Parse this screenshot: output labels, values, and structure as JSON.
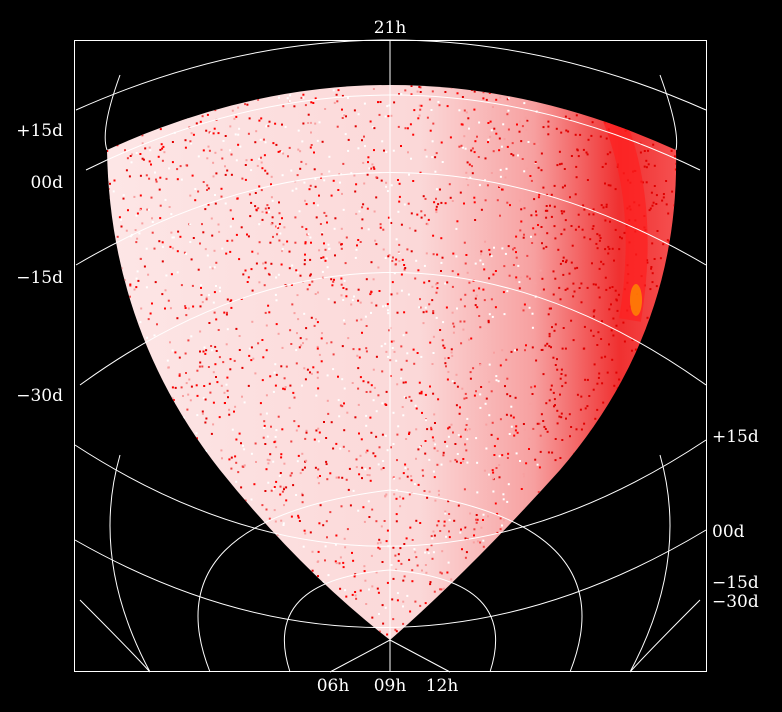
{
  "chart_data": {
    "type": "heatmap",
    "projection": "all-sky celestial coordinate grid",
    "top_ra_label": "21h",
    "bottom_ra_labels": [
      "06h",
      "09h",
      "12h"
    ],
    "left_dec_labels": [
      "+15d",
      "00d",
      "−15d",
      "−30d"
    ],
    "right_dec_labels": [
      "+15d",
      "00d",
      "−15d",
      "−30d"
    ],
    "colors": {
      "background": "#000000",
      "grid": "#ffffff",
      "low_density": "#fde8e8",
      "high_density": "#ff1a1a",
      "peak": "#ff8c00"
    }
  }
}
